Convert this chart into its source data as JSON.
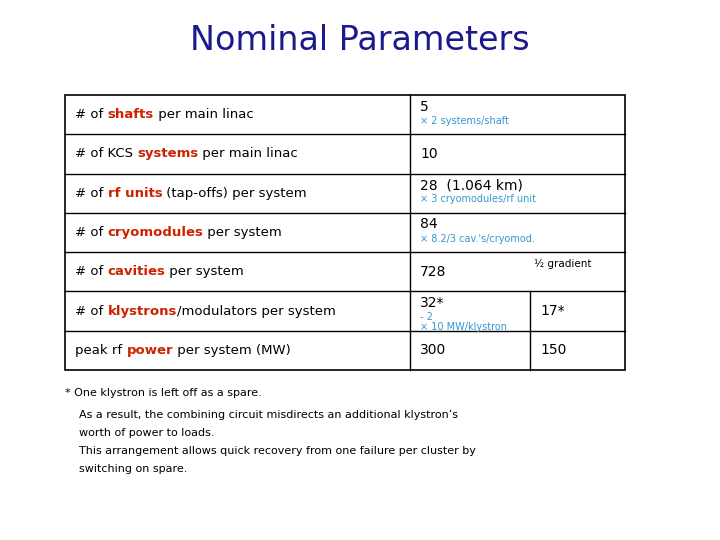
{
  "title": "Nominal Parameters",
  "title_color": "#1a1a8c",
  "title_fontsize": 24,
  "rows": [
    {
      "left_segments": [
        "# of ",
        "shafts",
        " per main linac"
      ],
      "left_colors": [
        "black",
        "#cc2200",
        "black"
      ],
      "main_val": "5",
      "sub_val": "× 2 systems/shaft",
      "sub2_val": null,
      "col3_val": null
    },
    {
      "left_segments": [
        "# of KCS ",
        "systems",
        " per main linac"
      ],
      "left_colors": [
        "black",
        "#cc2200",
        "black"
      ],
      "main_val": "10",
      "sub_val": null,
      "sub2_val": null,
      "col3_val": null
    },
    {
      "left_segments": [
        "# of ",
        "rf units",
        " (tap-offs) per system"
      ],
      "left_colors": [
        "black",
        "#cc2200",
        "black"
      ],
      "main_val": "28  (1.064 km)",
      "sub_val": "× 3 cryomodules/rf unit",
      "sub2_val": null,
      "col3_val": null
    },
    {
      "left_segments": [
        "# of ",
        "cryomodules",
        " per system"
      ],
      "left_colors": [
        "black",
        "#cc2200",
        "black"
      ],
      "main_val": "84",
      "sub_val": "× 8.2/3 cav.'s/cryomod.",
      "sub2_val": null,
      "col3_val": null
    },
    {
      "left_segments": [
        "# of ",
        "cavities",
        " per system"
      ],
      "left_colors": [
        "black",
        "#cc2200",
        "black"
      ],
      "main_val": "728",
      "sub_val": null,
      "sub2_val": null,
      "col3_val": null
    },
    {
      "left_segments": [
        "# of ",
        "klystrons",
        "/modulators per system"
      ],
      "left_colors": [
        "black",
        "#cc2200",
        "black"
      ],
      "main_val": "32*",
      "sub_val": "- 2",
      "sub2_val": "× 10 MW/klystron",
      "col3_val": "17*"
    },
    {
      "left_segments": [
        "peak rf ",
        "power",
        " per system (MW)"
      ],
      "left_colors": [
        "black",
        "#cc2200",
        "black"
      ],
      "main_val": "300",
      "sub_val": null,
      "sub2_val": null,
      "col3_val": "150"
    }
  ],
  "sub_color": "#3399cc",
  "half_grad_label": "½ gradient",
  "footnote_star": "* One klystron is left off as a spare.",
  "footnote_lines": [
    "As a result, the combining circuit misdirects an additional klystron’s",
    "worth of power to loads.",
    "This arrangement allows quick recovery from one failure per cluster by",
    "switching on spare."
  ]
}
